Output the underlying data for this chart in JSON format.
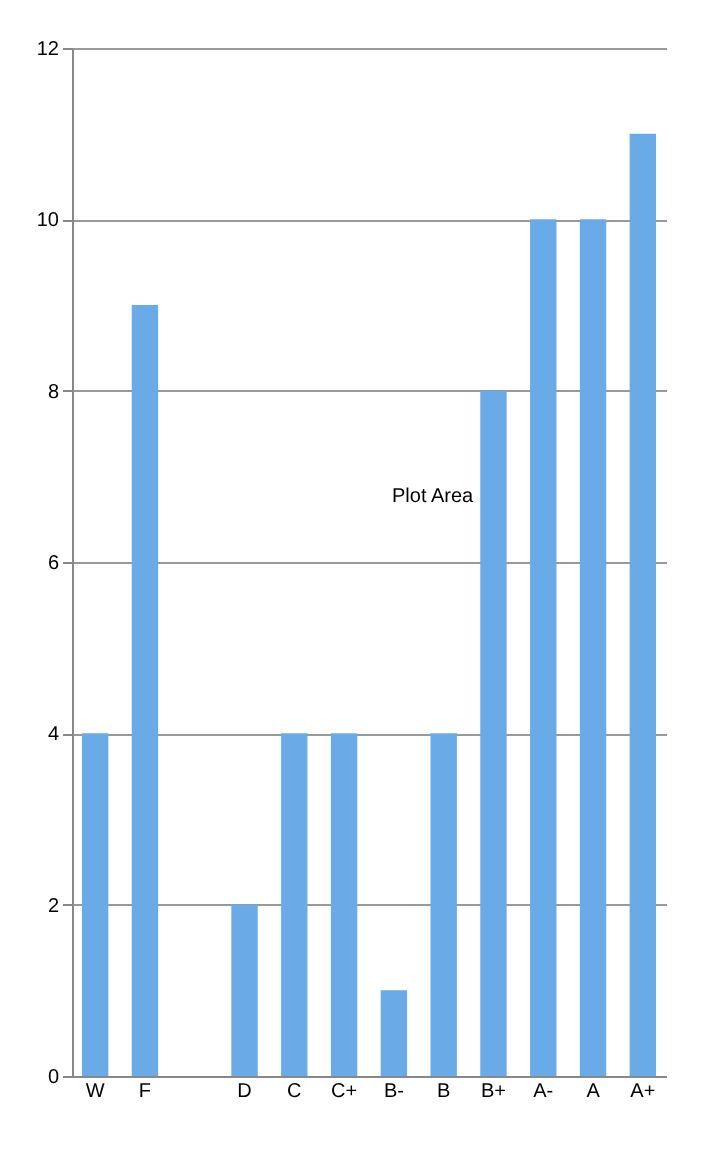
{
  "chart_data": {
    "type": "bar",
    "categories": [
      "W",
      "F",
      null,
      "D",
      "C",
      "C+",
      "B-",
      "B",
      "B+",
      "A-",
      "A",
      "A+"
    ],
    "values": [
      4,
      9,
      null,
      2,
      4,
      4,
      1,
      4,
      8,
      10,
      10,
      11
    ],
    "color": "#6aaae6",
    "ylim": [
      0,
      12
    ],
    "yticks": [
      0,
      2,
      4,
      6,
      8,
      10,
      12
    ],
    "grid": "y",
    "annotations": [
      "Plot Area"
    ]
  }
}
